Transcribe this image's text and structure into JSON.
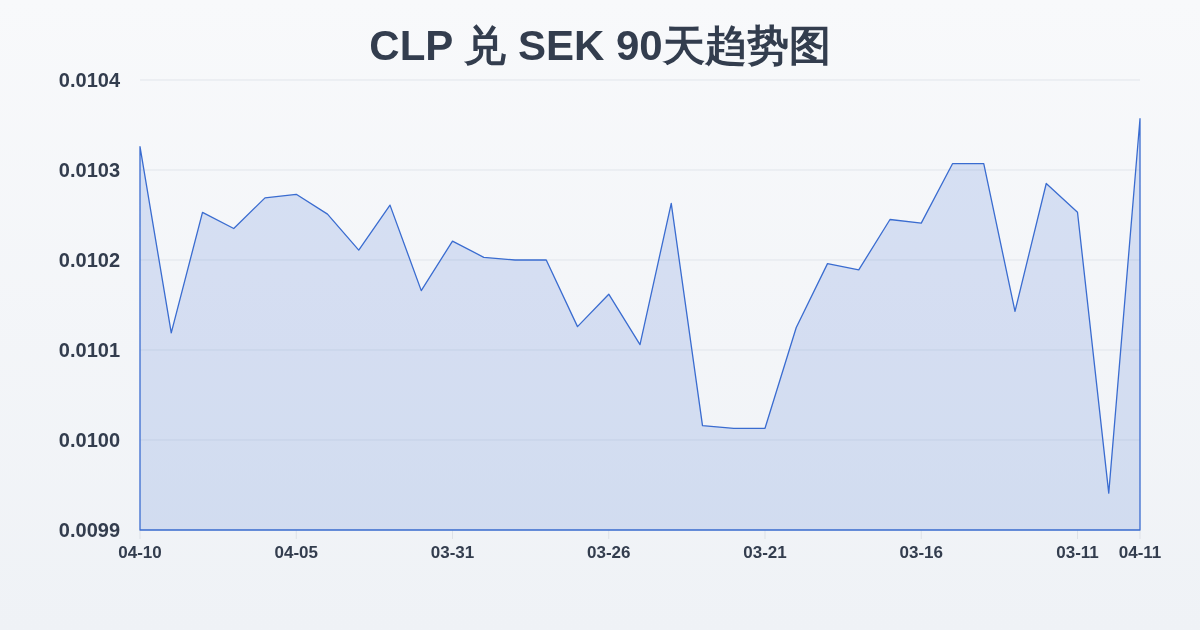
{
  "chart_data": {
    "type": "area",
    "title": "CLP 兑 SEK 90天趋势图",
    "categories": [
      "04-10",
      null,
      null,
      null,
      null,
      "04-05",
      null,
      null,
      null,
      null,
      "03-31",
      null,
      null,
      null,
      null,
      "03-26",
      null,
      null,
      null,
      null,
      "03-21",
      null,
      null,
      null,
      null,
      "03-16",
      null,
      null,
      null,
      null,
      "03-11",
      null,
      "04-11"
    ],
    "series": [
      {
        "color": "#3a6cd0",
        "values": [
          0.010326,
          0.010119,
          0.010253,
          0.010235,
          0.010269,
          0.010273,
          0.010251,
          0.010211,
          0.010261,
          0.010166,
          0.010221,
          0.010203,
          0.0102,
          0.0102,
          0.010126,
          0.010162,
          0.010106,
          0.010263,
          0.010016,
          0.010013,
          0.010013,
          0.010125,
          0.010196,
          0.010189,
          0.010245,
          0.010241,
          0.010307,
          0.010307,
          0.010143,
          0.010285,
          0.010253,
          0.009941,
          0.010357
        ]
      }
    ],
    "ylim": [
      0.0099,
      0.0104
    ],
    "yticks": [
      0.0099,
      {
        "value": 0.01,
        "label": "0.0100"
      },
      0.0101,
      0.0102,
      0.0103,
      0.0104
    ],
    "grid": "y"
  }
}
